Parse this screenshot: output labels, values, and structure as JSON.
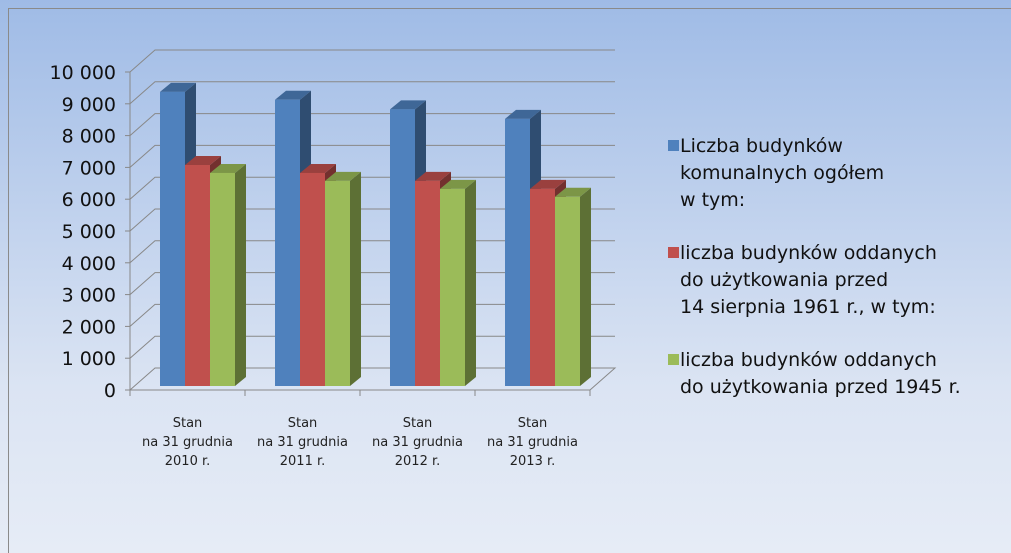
{
  "chart_data": {
    "type": "bar3d",
    "categories": [
      "Stan\nna 31 grudnia\n2010 r.",
      "Stan\nna 31 grudnia\n2011 r.",
      "Stan\nna 31 grudnia\n2012 r.",
      "Stan\nna 31 grudnia\n2013 r."
    ],
    "series": [
      {
        "name": "Liczba budynków\nkomunalnych ogółem\nw tym:",
        "color": "#4f81bd",
        "values": [
          9250,
          9000,
          8700,
          8400
        ]
      },
      {
        "name": "liczba budynków oddanych\ndo użytkowania przed\n14 sierpnia 1961 r., w tym:",
        "color": "#c0504d",
        "values": [
          6950,
          6700,
          6450,
          6200
        ]
      },
      {
        "name": "liczba budynków oddanych\ndo użytkowania przed 1945 r.",
        "color": "#9bbb59",
        "values": [
          6700,
          6450,
          6200,
          5950
        ]
      }
    ],
    "ylim": [
      0,
      10000
    ],
    "yticks": [
      0,
      {
        "value": 1000,
        "label": "1 000"
      },
      {
        "value": 2000,
        "label": "2 000"
      },
      {
        "value": 3000,
        "label": "3 000"
      },
      {
        "value": 4000,
        "label": "4 000"
      },
      {
        "value": 5000,
        "label": "5 000"
      },
      {
        "value": 6000,
        "label": "6 000"
      },
      {
        "value": 7000,
        "label": "7 000"
      },
      {
        "value": 8000,
        "label": "8 000"
      },
      {
        "value": 9000,
        "label": "9 000"
      },
      {
        "value": 10000,
        "label": "10 000"
      }
    ],
    "grid": true,
    "legend": "right"
  }
}
